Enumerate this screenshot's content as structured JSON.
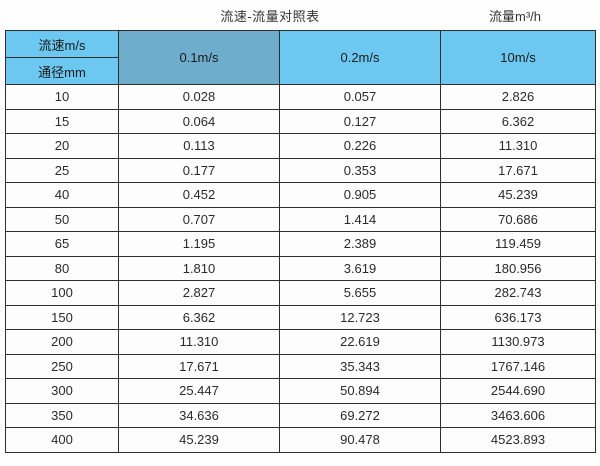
{
  "page": {
    "title_left": "流速-流量对照表",
    "title_right": "流量m³/h"
  },
  "table": {
    "header": {
      "velocity_label": "流速m/s",
      "diameter_label": "通径mm",
      "columns": [
        "0.1m/s",
        "0.2m/s",
        "10m/s"
      ]
    },
    "rows": [
      {
        "diameter": "10",
        "values": [
          "0.028",
          "0.057",
          "2.826"
        ]
      },
      {
        "diameter": "15",
        "values": [
          "0.064",
          "0.127",
          "6.362"
        ]
      },
      {
        "diameter": "20",
        "values": [
          "0.113",
          "0.226",
          "11.310"
        ]
      },
      {
        "diameter": "25",
        "values": [
          "0.177",
          "0.353",
          "17.671"
        ]
      },
      {
        "diameter": "40",
        "values": [
          "0.452",
          "0.905",
          "45.239"
        ]
      },
      {
        "diameter": "50",
        "values": [
          "0.707",
          "1.414",
          "70.686"
        ]
      },
      {
        "diameter": "65",
        "values": [
          "1.195",
          "2.389",
          "119.459"
        ]
      },
      {
        "diameter": "80",
        "values": [
          "1.810",
          "3.619",
          "180.956"
        ]
      },
      {
        "diameter": "100",
        "values": [
          "2.827",
          "5.655",
          "282.743"
        ]
      },
      {
        "diameter": "150",
        "values": [
          "6.362",
          "12.723",
          "636.173"
        ]
      },
      {
        "diameter": "200",
        "values": [
          "11.310",
          "22.619",
          "1130.973"
        ]
      },
      {
        "diameter": "250",
        "values": [
          "17.671",
          "35.343",
          "1767.146"
        ]
      },
      {
        "diameter": "300",
        "values": [
          "25.447",
          "50.894",
          "2544.690"
        ]
      },
      {
        "diameter": "350",
        "values": [
          "34.636",
          "69.272",
          "3463.606"
        ]
      },
      {
        "diameter": "400",
        "values": [
          "45.239",
          "90.478",
          "4523.893"
        ]
      }
    ]
  },
  "colors": {
    "header_blue": "#6cc8f0",
    "header_highlight_blue": "#6fadcc",
    "highlight_column_gray": "#dcdcdc",
    "border": "#2e2e2e"
  },
  "chart_data": {
    "type": "table",
    "title": "流速-流量对照表",
    "unit_annotation": "流量m³/h",
    "columns": [
      "通径mm",
      "0.1m/s",
      "0.2m/s",
      "10m/s"
    ],
    "rows": [
      [
        10,
        0.028,
        0.057,
        2.826
      ],
      [
        15,
        0.064,
        0.127,
        6.362
      ],
      [
        20,
        0.113,
        0.226,
        11.31
      ],
      [
        25,
        0.177,
        0.353,
        17.671
      ],
      [
        40,
        0.452,
        0.905,
        45.239
      ],
      [
        50,
        0.707,
        1.414,
        70.686
      ],
      [
        65,
        1.195,
        2.389,
        119.459
      ],
      [
        80,
        1.81,
        3.619,
        180.956
      ],
      [
        100,
        2.827,
        5.655,
        282.743
      ],
      [
        150,
        6.362,
        12.723,
        636.173
      ],
      [
        200,
        11.31,
        22.619,
        1130.973
      ],
      [
        250,
        17.671,
        35.343,
        1767.146
      ],
      [
        300,
        25.447,
        50.894,
        2544.69
      ],
      [
        350,
        34.636,
        69.272,
        3463.606
      ],
      [
        400,
        45.239,
        90.478,
        4523.893
      ]
    ]
  }
}
